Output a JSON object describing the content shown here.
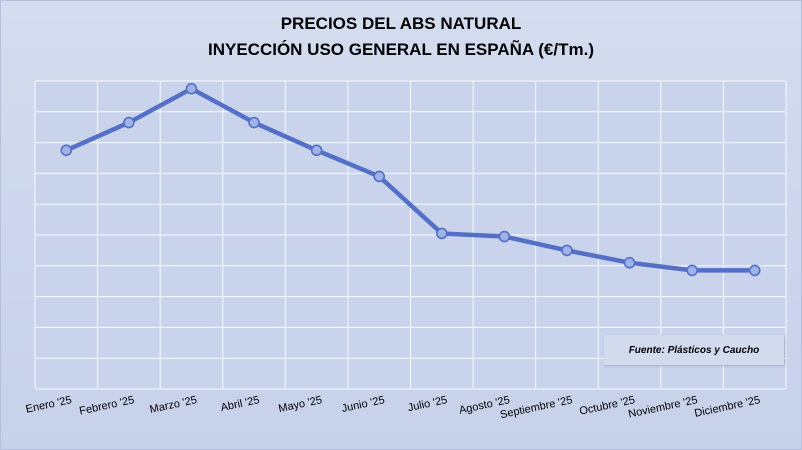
{
  "chart_data": {
    "type": "line",
    "title": [
      "PRECIOS DEL ABS NATURAL",
      "INYECCIÓN USO GENERAL EN ESPAÑA (€/Tm.)"
    ],
    "categories": [
      "Enero '25",
      "Febrero '25",
      "Marzo '25",
      "Abril '25",
      "Mayo '25",
      "Junio '25",
      "Julio '25",
      "Agosto '25",
      "Septiembre '25",
      "Octubre '25",
      "Noviembre '25",
      "Diciembre '25"
    ],
    "series": [
      {
        "values": [
          1.95,
          1.05,
          -0.05,
          1.05,
          1.95,
          2.8,
          4.65,
          4.75,
          5.2,
          5.6,
          5.85,
          5.85
        ]
      }
    ],
    "y_gridlines": 10,
    "grid": true,
    "y_axis_labels_shown": false,
    "line_color": "#5470c6",
    "marker_color": "#9fb3e6",
    "background_color": "#c9d3eb",
    "source_note": "Fuente: Plásticos y Caucho"
  }
}
